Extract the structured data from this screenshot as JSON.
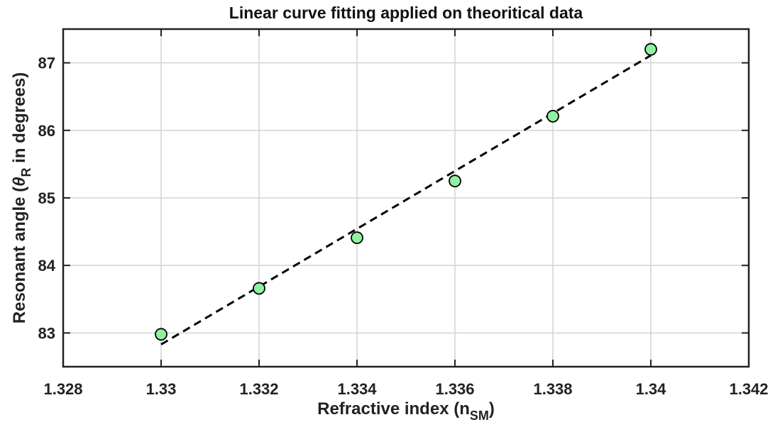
{
  "chart_data": {
    "type": "scatter",
    "title": "Linear curve fitting applied on theoritical data",
    "xlabel": {
      "main": "Refractive index (n",
      "sub": "SM",
      "close": ")"
    },
    "ylabel": {
      "main": "Resonant angle (",
      "symbol": "θ",
      "sub": "R",
      "rest": " in degrees)"
    },
    "xlim": [
      1.328,
      1.342
    ],
    "ylim": [
      82.5,
      87.5
    ],
    "x_ticks": [
      1.328,
      1.33,
      1.332,
      1.334,
      1.336,
      1.338,
      1.34,
      1.342
    ],
    "x_tick_labels": [
      "1.328",
      "1.33",
      "1.332",
      "1.334",
      "1.336",
      "1.338",
      "1.34",
      "1.342"
    ],
    "y_ticks": [
      83,
      84,
      85,
      86,
      87
    ],
    "y_tick_labels": [
      "83",
      "84",
      "85",
      "86",
      "87"
    ],
    "grid": true,
    "series": [
      {
        "marker": "circle",
        "color": "#8ef2a0",
        "edge_color": "#000000",
        "x": [
          1.33,
          1.332,
          1.334,
          1.336,
          1.338,
          1.34
        ],
        "y": [
          82.98,
          83.66,
          84.41,
          85.25,
          86.21,
          87.2
        ]
      }
    ],
    "fit_line": {
      "style": "dashed",
      "color": "#000000",
      "x": [
        1.33,
        1.34
      ],
      "y": [
        82.83,
        87.11
      ]
    }
  }
}
